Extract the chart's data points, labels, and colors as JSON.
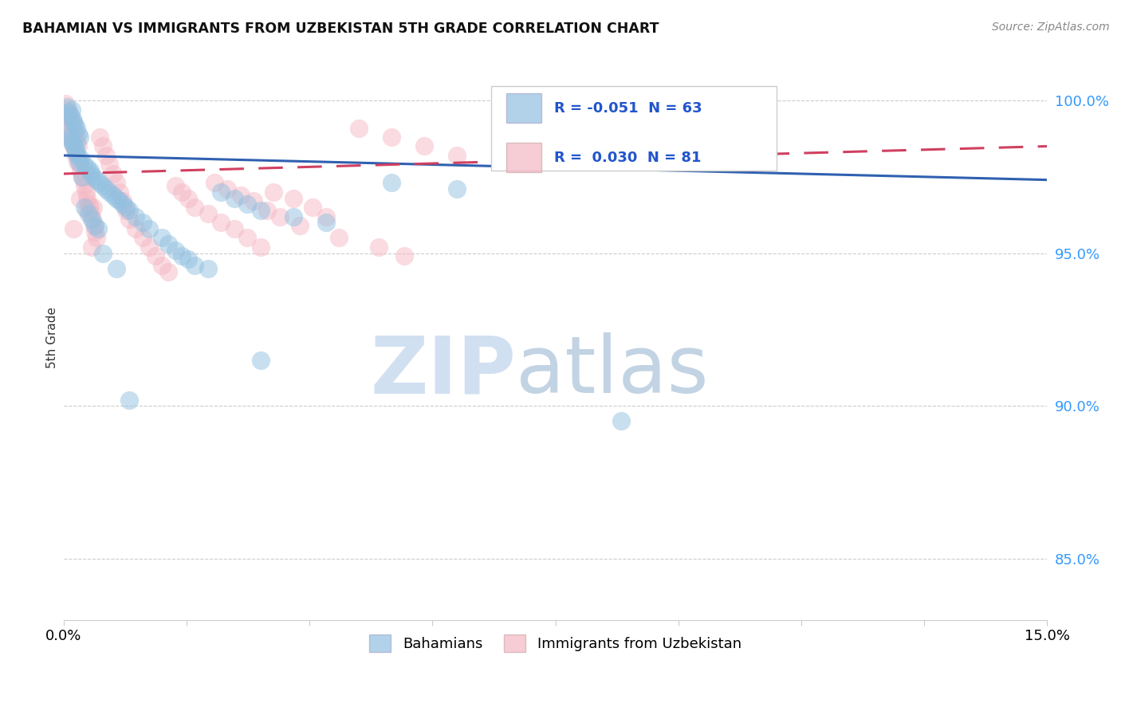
{
  "title": "BAHAMIAN VS IMMIGRANTS FROM UZBEKISTAN 5TH GRADE CORRELATION CHART",
  "source": "Source: ZipAtlas.com",
  "ylabel": "5th Grade",
  "xlim": [
    0.0,
    15.0
  ],
  "ylim": [
    83.0,
    101.5
  ],
  "yticks": [
    85.0,
    90.0,
    95.0,
    100.0
  ],
  "ytick_labels": [
    "85.0%",
    "90.0%",
    "95.0%",
    "100.0%"
  ],
  "bahamians_color": "#92c0e0",
  "uzbekistan_color": "#f4b8c4",
  "trend_blue_color": "#3060b0",
  "trend_pink_color": "#d04060",
  "blue_scatter": [
    [
      0.05,
      99.8
    ],
    [
      0.08,
      99.6
    ],
    [
      0.1,
      99.5
    ],
    [
      0.12,
      99.7
    ],
    [
      0.13,
      99.4
    ],
    [
      0.15,
      99.3
    ],
    [
      0.17,
      99.2
    ],
    [
      0.2,
      99.1
    ],
    [
      0.22,
      98.9
    ],
    [
      0.25,
      98.8
    ],
    [
      0.07,
      99.0
    ],
    [
      0.09,
      98.8
    ],
    [
      0.11,
      98.7
    ],
    [
      0.14,
      98.6
    ],
    [
      0.16,
      98.5
    ],
    [
      0.18,
      98.4
    ],
    [
      0.19,
      98.3
    ],
    [
      0.21,
      98.2
    ],
    [
      0.23,
      98.0
    ],
    [
      0.26,
      98.1
    ],
    [
      0.3,
      97.9
    ],
    [
      0.35,
      97.8
    ],
    [
      0.4,
      97.7
    ],
    [
      0.42,
      97.6
    ],
    [
      0.45,
      97.5
    ],
    [
      0.5,
      97.4
    ],
    [
      0.55,
      97.3
    ],
    [
      0.6,
      97.2
    ],
    [
      0.65,
      97.1
    ],
    [
      0.28,
      97.5
    ],
    [
      0.7,
      97.0
    ],
    [
      0.75,
      96.9
    ],
    [
      0.8,
      96.8
    ],
    [
      0.85,
      96.7
    ],
    [
      0.9,
      96.6
    ],
    [
      0.95,
      96.5
    ],
    [
      1.0,
      96.4
    ],
    [
      1.1,
      96.2
    ],
    [
      1.2,
      96.0
    ],
    [
      1.3,
      95.8
    ],
    [
      0.32,
      96.5
    ],
    [
      0.38,
      96.3
    ],
    [
      0.43,
      96.1
    ],
    [
      0.48,
      95.9
    ],
    [
      0.53,
      95.8
    ],
    [
      1.5,
      95.5
    ],
    [
      1.6,
      95.3
    ],
    [
      1.7,
      95.1
    ],
    [
      1.8,
      94.9
    ],
    [
      1.9,
      94.8
    ],
    [
      2.0,
      94.6
    ],
    [
      2.2,
      94.5
    ],
    [
      2.4,
      97.0
    ],
    [
      2.6,
      96.8
    ],
    [
      2.8,
      96.6
    ],
    [
      3.0,
      96.4
    ],
    [
      3.5,
      96.2
    ],
    [
      4.0,
      96.0
    ],
    [
      5.0,
      97.3
    ],
    [
      6.0,
      97.1
    ],
    [
      0.6,
      95.0
    ],
    [
      0.8,
      94.5
    ],
    [
      1.0,
      90.2
    ],
    [
      3.0,
      91.5
    ],
    [
      8.5,
      89.5
    ]
  ],
  "pink_scatter": [
    [
      0.02,
      99.9
    ],
    [
      0.04,
      99.7
    ],
    [
      0.06,
      99.5
    ],
    [
      0.08,
      99.6
    ],
    [
      0.1,
      99.4
    ],
    [
      0.12,
      99.3
    ],
    [
      0.14,
      99.1
    ],
    [
      0.16,
      98.9
    ],
    [
      0.18,
      98.8
    ],
    [
      0.2,
      98.6
    ],
    [
      0.22,
      98.5
    ],
    [
      0.07,
      99.2
    ],
    [
      0.09,
      99.0
    ],
    [
      0.11,
      98.8
    ],
    [
      0.13,
      98.7
    ],
    [
      0.15,
      98.5
    ],
    [
      0.17,
      98.4
    ],
    [
      0.19,
      98.2
    ],
    [
      0.21,
      98.0
    ],
    [
      0.24,
      97.9
    ],
    [
      0.26,
      97.7
    ],
    [
      0.28,
      97.5
    ],
    [
      0.3,
      97.4
    ],
    [
      0.32,
      97.2
    ],
    [
      0.34,
      97.0
    ],
    [
      0.36,
      96.8
    ],
    [
      0.38,
      96.6
    ],
    [
      0.4,
      96.5
    ],
    [
      0.42,
      96.3
    ],
    [
      0.44,
      96.1
    ],
    [
      0.46,
      95.9
    ],
    [
      0.48,
      95.7
    ],
    [
      0.5,
      95.5
    ],
    [
      0.25,
      96.8
    ],
    [
      0.35,
      96.4
    ],
    [
      0.55,
      98.8
    ],
    [
      0.6,
      98.5
    ],
    [
      0.65,
      98.2
    ],
    [
      0.7,
      97.9
    ],
    [
      0.75,
      97.6
    ],
    [
      0.8,
      97.3
    ],
    [
      0.85,
      97.0
    ],
    [
      0.9,
      96.7
    ],
    [
      0.95,
      96.4
    ],
    [
      1.0,
      96.1
    ],
    [
      1.1,
      95.8
    ],
    [
      1.2,
      95.5
    ],
    [
      1.3,
      95.2
    ],
    [
      1.4,
      94.9
    ],
    [
      1.5,
      94.6
    ],
    [
      1.6,
      94.4
    ],
    [
      1.7,
      97.2
    ],
    [
      1.8,
      97.0
    ],
    [
      1.9,
      96.8
    ],
    [
      2.0,
      96.5
    ],
    [
      2.2,
      96.3
    ],
    [
      2.4,
      96.0
    ],
    [
      2.6,
      95.8
    ],
    [
      2.8,
      95.5
    ],
    [
      3.0,
      95.2
    ],
    [
      3.2,
      97.0
    ],
    [
      3.5,
      96.8
    ],
    [
      3.8,
      96.5
    ],
    [
      4.0,
      96.2
    ],
    [
      4.5,
      99.1
    ],
    [
      5.0,
      98.8
    ],
    [
      5.5,
      98.5
    ],
    [
      6.0,
      98.2
    ],
    [
      0.45,
      96.5
    ],
    [
      0.43,
      95.2
    ],
    [
      2.3,
      97.3
    ],
    [
      2.5,
      97.1
    ],
    [
      2.7,
      96.9
    ],
    [
      2.9,
      96.7
    ],
    [
      3.1,
      96.4
    ],
    [
      3.3,
      96.2
    ],
    [
      3.6,
      95.9
    ],
    [
      4.2,
      95.5
    ],
    [
      4.8,
      95.2
    ],
    [
      5.2,
      94.9
    ],
    [
      0.15,
      95.8
    ]
  ],
  "blue_trend_y0": 98.2,
  "blue_trend_y1": 97.4,
  "pink_trend_y0": 97.6,
  "pink_trend_y1": 98.5
}
